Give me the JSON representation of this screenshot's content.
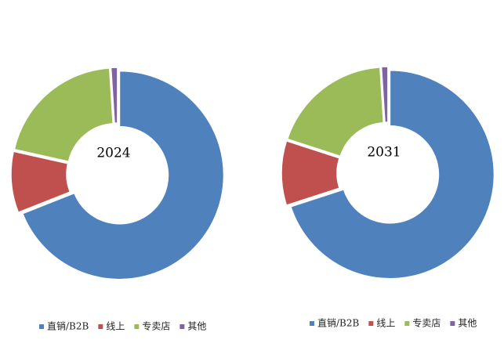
{
  "chart_data": [
    {
      "type": "donut",
      "title": "2024",
      "categories": [
        "直销/B2B",
        "线上",
        "专卖店",
        "其他"
      ],
      "values": [
        69,
        9.5,
        20.5,
        1
      ],
      "colors": [
        "#4f81bd",
        "#c0504d",
        "#9bbb59",
        "#8064a2"
      ],
      "legend": "bottom"
    },
    {
      "type": "donut",
      "title": "2031",
      "categories": [
        "直销/B2B",
        "线上",
        "专卖店",
        "其他"
      ],
      "values": [
        70,
        10,
        19,
        1
      ],
      "colors": [
        "#4f81bd",
        "#c0504d",
        "#9bbb59",
        "#8064a2"
      ],
      "legend": "bottom"
    }
  ]
}
